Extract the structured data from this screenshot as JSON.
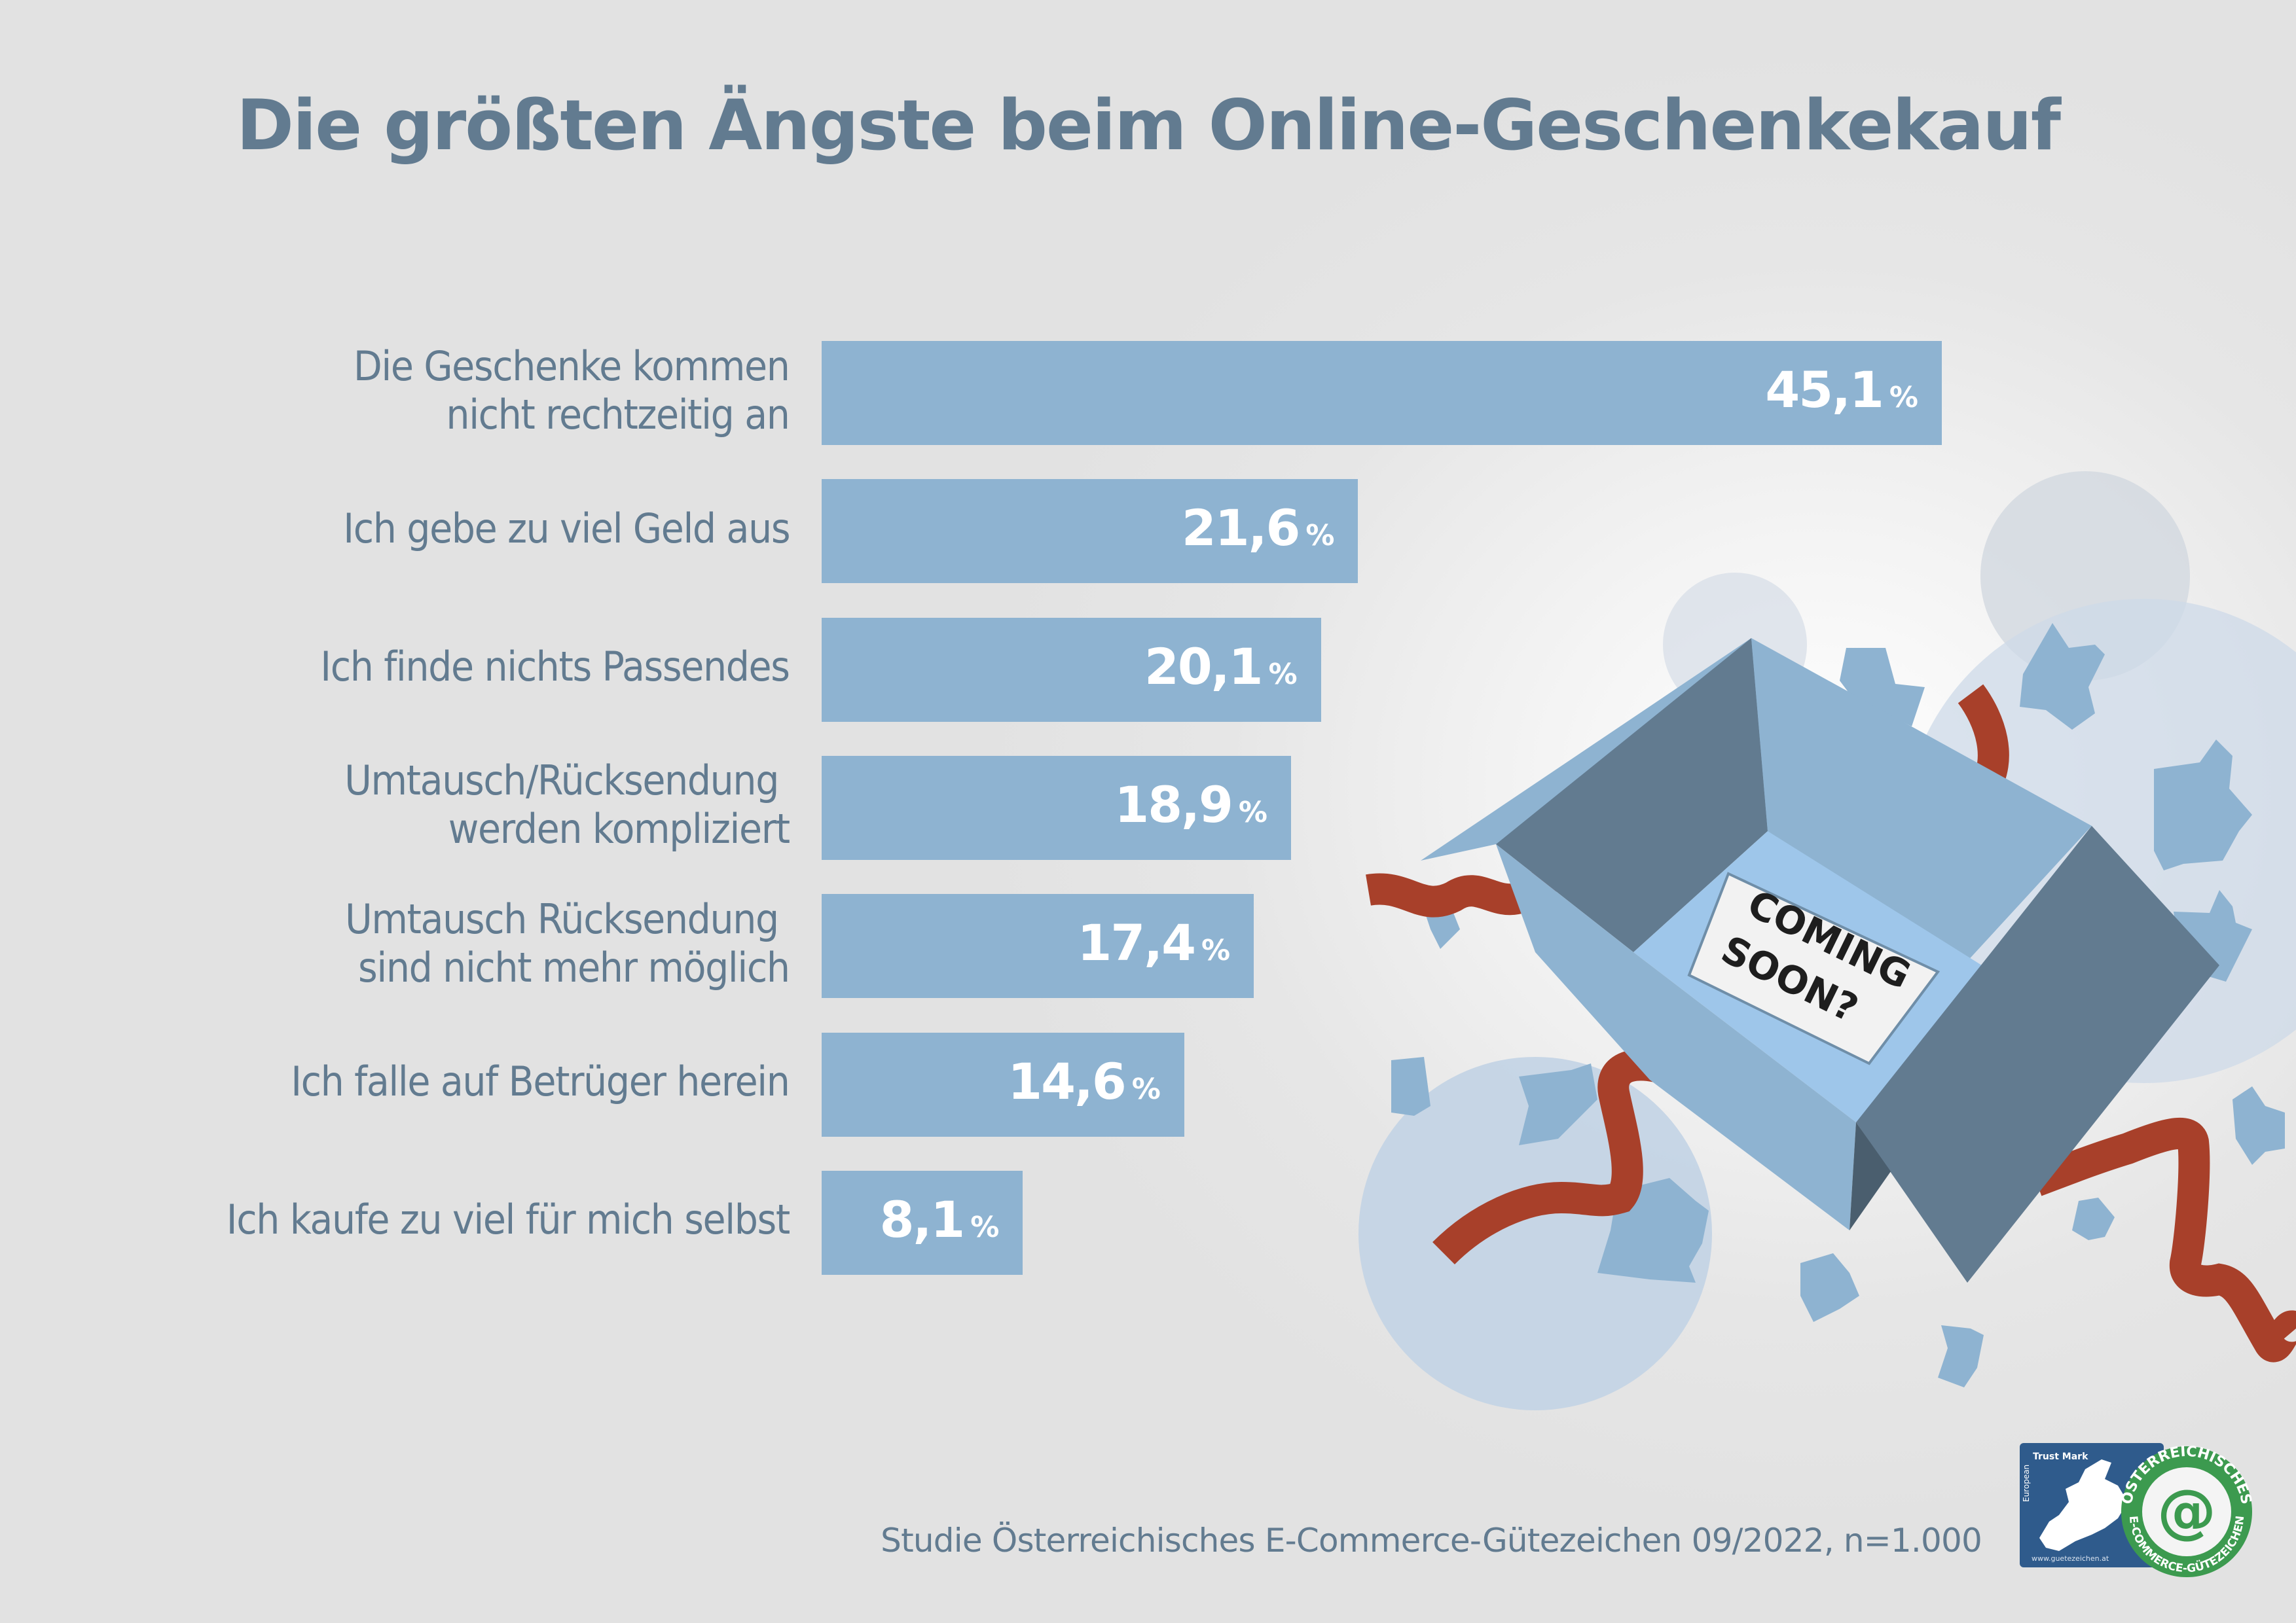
{
  "title": "Die größten Ängste beim Online-Geschenkekauf",
  "footer": "Studie Österreichisches E-Commerce-Gütezeichen 09/2022, n=1.000",
  "illustration": {
    "sign_line1": "COMING",
    "sign_line2": "SOON?",
    "colors": {
      "box_light": "#8eb3d1",
      "box_dark": "#627b90",
      "ribbon": "#a8402a",
      "inner": "#9ec6ea"
    }
  },
  "logo": {
    "trustmark_label": "Trust Mark",
    "trustmark_side": "European",
    "trustmark_url": "www.guetezeichen.at",
    "seal_top": "ÖSTERREICHISCHES",
    "seal_bottom": "E-COMMERCE-GÜTEZEICHEN",
    "colors": {
      "trustmark_bg": "#2f5b8c",
      "seal_green": "#3c9a4f"
    }
  },
  "colors": {
    "bar": "#8eb3d1",
    "text": "#627b90",
    "value_text": "#ffffff",
    "background": "#e2e2e2"
  },
  "chart_data": {
    "type": "bar",
    "orientation": "horizontal",
    "title": "Die größten Ängste beim Online-Geschenkekauf",
    "xlabel": "",
    "ylabel": "",
    "unit": "%",
    "grid": false,
    "xlim": [
      0,
      45.1
    ],
    "categories": [
      "Die Geschenke kommen\nnicht rechtzeitig an",
      "Ich gebe zu viel Geld aus",
      "Ich finde nichts Passendes",
      "Umtausch/Rücksendung \nwerden kompliziert",
      "Umtausch Rücksendung \nsind nicht mehr möglich",
      "Ich falle auf Betrüger herein",
      "Ich kaufe zu viel für mich selbst"
    ],
    "values": [
      45.1,
      21.6,
      20.1,
      18.9,
      17.4,
      14.6,
      8.1
    ],
    "value_labels": [
      "45,1",
      "21,6",
      "20,1",
      "18,9",
      "17,4",
      "14,6",
      "8,1"
    ],
    "source": "Studie Österreichisches E-Commerce-Gütezeichen 09/2022, n=1.000"
  }
}
